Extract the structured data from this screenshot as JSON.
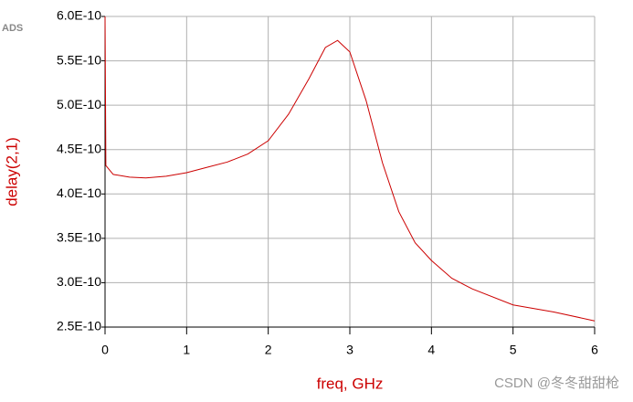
{
  "chart_data": {
    "type": "line",
    "app_label": "ADS",
    "x_label": "freq, GHz",
    "y_label": "delay(2,1)",
    "watermark": "CSDN @冬冬甜甜枪",
    "color": "#cc0000",
    "grid": true,
    "x": [
      0,
      0.01,
      0.1,
      0.3,
      0.5,
      0.75,
      1.0,
      1.25,
      1.5,
      1.75,
      2.0,
      2.25,
      2.5,
      2.7,
      2.85,
      3.0,
      3.2,
      3.4,
      3.6,
      3.8,
      4.0,
      4.25,
      4.5,
      5.0,
      5.5,
      6.0
    ],
    "values": [
      6e-10,
      4.32e-10,
      4.22e-10,
      4.19e-10,
      4.18e-10,
      4.2e-10,
      4.24e-10,
      4.3e-10,
      4.36e-10,
      4.45e-10,
      4.6e-10,
      4.9e-10,
      5.3e-10,
      5.65e-10,
      5.73e-10,
      5.6e-10,
      5.05e-10,
      4.35e-10,
      3.8e-10,
      3.45e-10,
      3.25e-10,
      3.05e-10,
      2.93e-10,
      2.75e-10,
      2.67e-10,
      2.57e-10
    ],
    "xlim": [
      0,
      6
    ],
    "xticks": [
      0,
      1,
      2,
      3,
      4,
      5,
      6
    ],
    "ylim": [
      2.5e-10,
      6e-10
    ],
    "yticks": [
      {
        "value": 2.5e-10,
        "label": "2.5E-10"
      },
      {
        "value": 3e-10,
        "label": "3.0E-10"
      },
      {
        "value": 3.5e-10,
        "label": "3.5E-10"
      },
      {
        "value": 4e-10,
        "label": "4.0E-10"
      },
      {
        "value": 4.5e-10,
        "label": "4.5E-10"
      },
      {
        "value": 5e-10,
        "label": "5.0E-10"
      },
      {
        "value": 5.5e-10,
        "label": "5.5E-10"
      },
      {
        "value": 6e-10,
        "label": "6.0E-10"
      }
    ]
  }
}
